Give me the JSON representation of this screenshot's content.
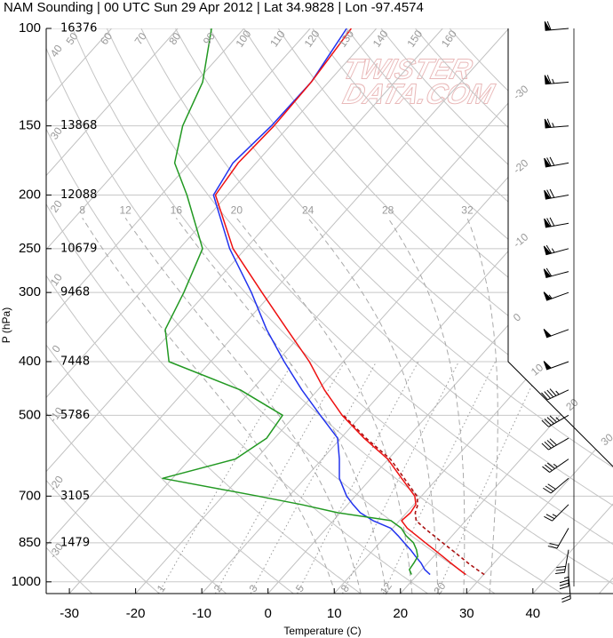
{
  "chart_data": {
    "type": "skewt",
    "title": "NAM Sounding | 00 UTC Sun 29 Apr 2012 | Lat 34.9828 | Lon -97.4574",
    "xlabel": "Temperature (C)",
    "ylabel": "P (hPa)",
    "watermark": [
      "TWISTER",
      "DATA.COM"
    ],
    "log_y": true,
    "grid": true,
    "xlim": [
      -33.5,
      52.1
    ],
    "ylim": [
      1050,
      100
    ],
    "xticks": [
      -30,
      -20,
      -10,
      0,
      10,
      20,
      30,
      40
    ],
    "yticks": [
      100,
      150,
      200,
      250,
      300,
      400,
      500,
      700,
      850,
      1000
    ],
    "isotherms": [
      -110,
      -100,
      -90,
      -80,
      -70,
      -60,
      -50,
      -40,
      -30,
      -20,
      -10,
      0,
      10,
      20,
      30,
      40,
      50
    ],
    "isotherm_labels": [
      -30,
      -20,
      -10,
      0,
      10,
      20,
      30
    ],
    "dry_adiabats": [
      -30,
      -20,
      -10,
      0,
      10,
      20,
      30,
      40,
      50,
      60,
      70,
      80,
      90,
      100,
      110,
      120,
      130,
      140,
      150,
      160
    ],
    "moist_adiabats": [
      8,
      12,
      16,
      20,
      24,
      28,
      32
    ],
    "mixing_ratios": [
      1,
      2,
      3,
      5,
      8,
      12,
      20
    ],
    "height_levels": [
      100,
      150,
      200,
      250,
      300,
      400,
      500,
      700,
      850
    ],
    "heights": [
      16376,
      13868,
      12088,
      10679,
      9468,
      7448,
      5786,
      3105,
      1479
    ],
    "levels": [
      970,
      950,
      925,
      900,
      875,
      850,
      825,
      800,
      775,
      750,
      725,
      700,
      650,
      600,
      550,
      500,
      450,
      400,
      350,
      300,
      250,
      200,
      175,
      150,
      125,
      100
    ],
    "series": [
      {
        "color": "#2233ee",
        "style": "solid",
        "values": [
          21.9,
          20.4,
          19.0,
          17.3,
          15.6,
          13.7,
          11.8,
          9.7,
          6.0,
          3.0,
          0.8,
          -1.3,
          -4.8,
          -7.4,
          -10.5,
          -16.2,
          -22.4,
          -28.9,
          -35.9,
          -43.2,
          -52.4,
          -62.1,
          -63.5,
          -62.7,
          -62.6,
          -64.5
        ]
      },
      {
        "color": "#229922",
        "style": "solid",
        "values": [
          19.1,
          18.1,
          17.9,
          17.6,
          16.5,
          15.1,
          13.0,
          11.3,
          8.7,
          -0.4,
          -7.0,
          -14.7,
          -31.5,
          -23.1,
          -21.2,
          -21.9,
          -31.7,
          -46.3,
          -51.2,
          -53.4,
          -56.5,
          -66.1,
          -72.3,
          -76.1,
          -79.0,
          -84.9
        ]
      },
      {
        "color": "#aa1111",
        "style": "dashed",
        "values": [
          30.1,
          28.3,
          26.1,
          24.0,
          21.8,
          19.5,
          17.2,
          14.8,
          12.5,
          11.3,
          10.6,
          9.3,
          5.0,
          0.3,
          -6.2,
          -12.7,
          null,
          null,
          null,
          null,
          null,
          null,
          null,
          null,
          null,
          null
        ]
      },
      {
        "color": "#ee1111",
        "style": "solid",
        "values": [
          27.3,
          25.6,
          23.5,
          21.4,
          19.2,
          16.9,
          14.6,
          12.2,
          10.3,
          10.6,
          10.3,
          9.0,
          4.6,
          -0.1,
          -6.5,
          -12.9,
          -19.0,
          -25.1,
          -32.8,
          -41.6,
          -51.9,
          -61.8,
          -62.7,
          -62.3,
          -62.6,
          -63.8
        ]
      }
    ],
    "wind": {
      "levels": [
        100,
        125,
        150,
        175,
        200,
        225,
        250,
        275,
        300,
        350,
        400,
        450,
        500,
        550,
        600,
        650,
        725,
        800,
        875,
        925,
        975
      ],
      "direction": [
        265,
        265,
        265,
        260,
        260,
        260,
        255,
        255,
        250,
        250,
        250,
        245,
        240,
        240,
        235,
        230,
        225,
        210,
        190,
        180,
        175
      ],
      "speed": [
        60,
        65,
        65,
        70,
        70,
        70,
        65,
        60,
        55,
        50,
        50,
        45,
        45,
        40,
        35,
        30,
        25,
        20,
        30,
        35,
        20
      ]
    }
  }
}
